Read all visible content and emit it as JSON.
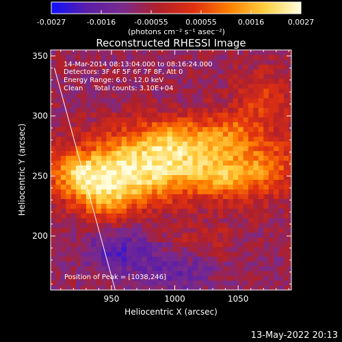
{
  "chart_data": {
    "type": "heatmap",
    "title": "Reconstructed RHESSI Image",
    "xlabel": "Heliocentric X (arcsec)",
    "ylabel": "Heliocentric Y (arcsec)",
    "xlim": [
      902,
      1092
    ],
    "ylim": [
      155,
      355
    ],
    "x_ticks": [
      {
        "value": 950,
        "label": "950"
      },
      {
        "value": 1000,
        "label": "1000"
      },
      {
        "value": 1050,
        "label": "1050"
      }
    ],
    "y_ticks": [
      {
        "value": 200,
        "label": "200"
      },
      {
        "value": 250,
        "label": "250"
      },
      {
        "value": 300,
        "label": "300"
      },
      {
        "value": 350,
        "label": "350"
      }
    ],
    "colorbar": {
      "min": -0.0027,
      "max": 0.0027,
      "ticks": [
        "-0.0027",
        "-0.0016",
        "-0.00055",
        "0.00055",
        "0.0016",
        "0.0027"
      ],
      "label": "(photons cm⁻² s⁻¹ asec⁻²)",
      "colors": [
        "#1010ff",
        "#5b1ea8",
        "#7a2a8c",
        "#b0202a",
        "#e03010",
        "#ff8000",
        "#ffd040",
        "#ffffe0"
      ]
    },
    "annotations": [
      "14-Mar-2014 08:13:04.000 to 08:16:24.000",
      "Detectors: 3F 4F 5F 6F 7F 8F, Att 0",
      "Energy Range: 6.0 - 12.0 keV",
      "Clean     Total counts: 3.10E+04"
    ],
    "peak_label": "Position of Peak = [1038,246]",
    "peak": [
      1038,
      246
    ],
    "limb_line": {
      "x": [
        905,
        953
      ],
      "y": [
        340,
        155
      ]
    },
    "blobs": [
      {
        "x": 1015,
        "y": 262,
        "sx": 60,
        "sy": 20,
        "a": 0.0022
      },
      {
        "x": 958,
        "y": 250,
        "sx": 32,
        "sy": 18,
        "a": 0.0018
      },
      {
        "x": 925,
        "y": 250,
        "sx": 16,
        "sy": 12,
        "a": 0.0013
      },
      {
        "x": 945,
        "y": 228,
        "sx": 16,
        "sy": 12,
        "a": 0.0013
      },
      {
        "x": 1000,
        "y": 283,
        "sx": 26,
        "sy": 12,
        "a": 0.0012
      },
      {
        "x": 1038,
        "y": 246,
        "sx": 14,
        "sy": 10,
        "a": 0.0008
      },
      {
        "x": 1070,
        "y": 316,
        "sx": 16,
        "sy": 16,
        "a": 0.0011
      },
      {
        "x": 1048,
        "y": 290,
        "sx": 14,
        "sy": 10,
        "a": 0.0008
      },
      {
        "x": 1025,
        "y": 197,
        "sx": 18,
        "sy": 10,
        "a": 0.0005
      },
      {
        "x": 1068,
        "y": 250,
        "sx": 12,
        "sy": 14,
        "a": 0.0006
      },
      {
        "x": 955,
        "y": 188,
        "sx": 18,
        "sy": 12,
        "a": -0.0012
      },
      {
        "x": 1000,
        "y": 170,
        "sx": 20,
        "sy": 12,
        "a": -0.0009
      }
    ]
  },
  "footer": {
    "timestamp": "13-May-2022 20:13"
  }
}
